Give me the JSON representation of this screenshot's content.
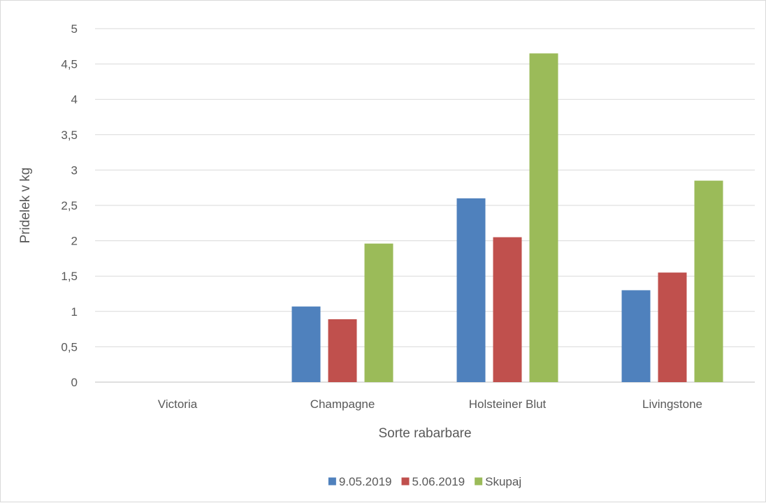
{
  "chart_data": {
    "type": "bar",
    "title": "",
    "xlabel": "Sorte rabarbare",
    "ylabel": "Pridelek v kg",
    "categories": [
      "Victoria",
      "Champagne",
      "Holsteiner Blut",
      "Livingstone"
    ],
    "y_ticks": [
      "0",
      "0,5",
      "1",
      "1,5",
      "2",
      "2,5",
      "3",
      "3,5",
      "4",
      "4,5",
      "5"
    ],
    "ylim": [
      0,
      5
    ],
    "grid": true,
    "legend_position": "bottom",
    "series": [
      {
        "name": "9.05.2019",
        "color": "#4f81bd",
        "values": [
          0,
          1.07,
          2.6,
          1.3
        ]
      },
      {
        "name": "5.06.2019",
        "color": "#c0504d",
        "values": [
          0,
          0.89,
          2.05,
          1.55
        ]
      },
      {
        "name": "Skupaj",
        "color": "#9bbb59",
        "values": [
          0,
          1.96,
          4.65,
          2.85
        ]
      }
    ]
  }
}
